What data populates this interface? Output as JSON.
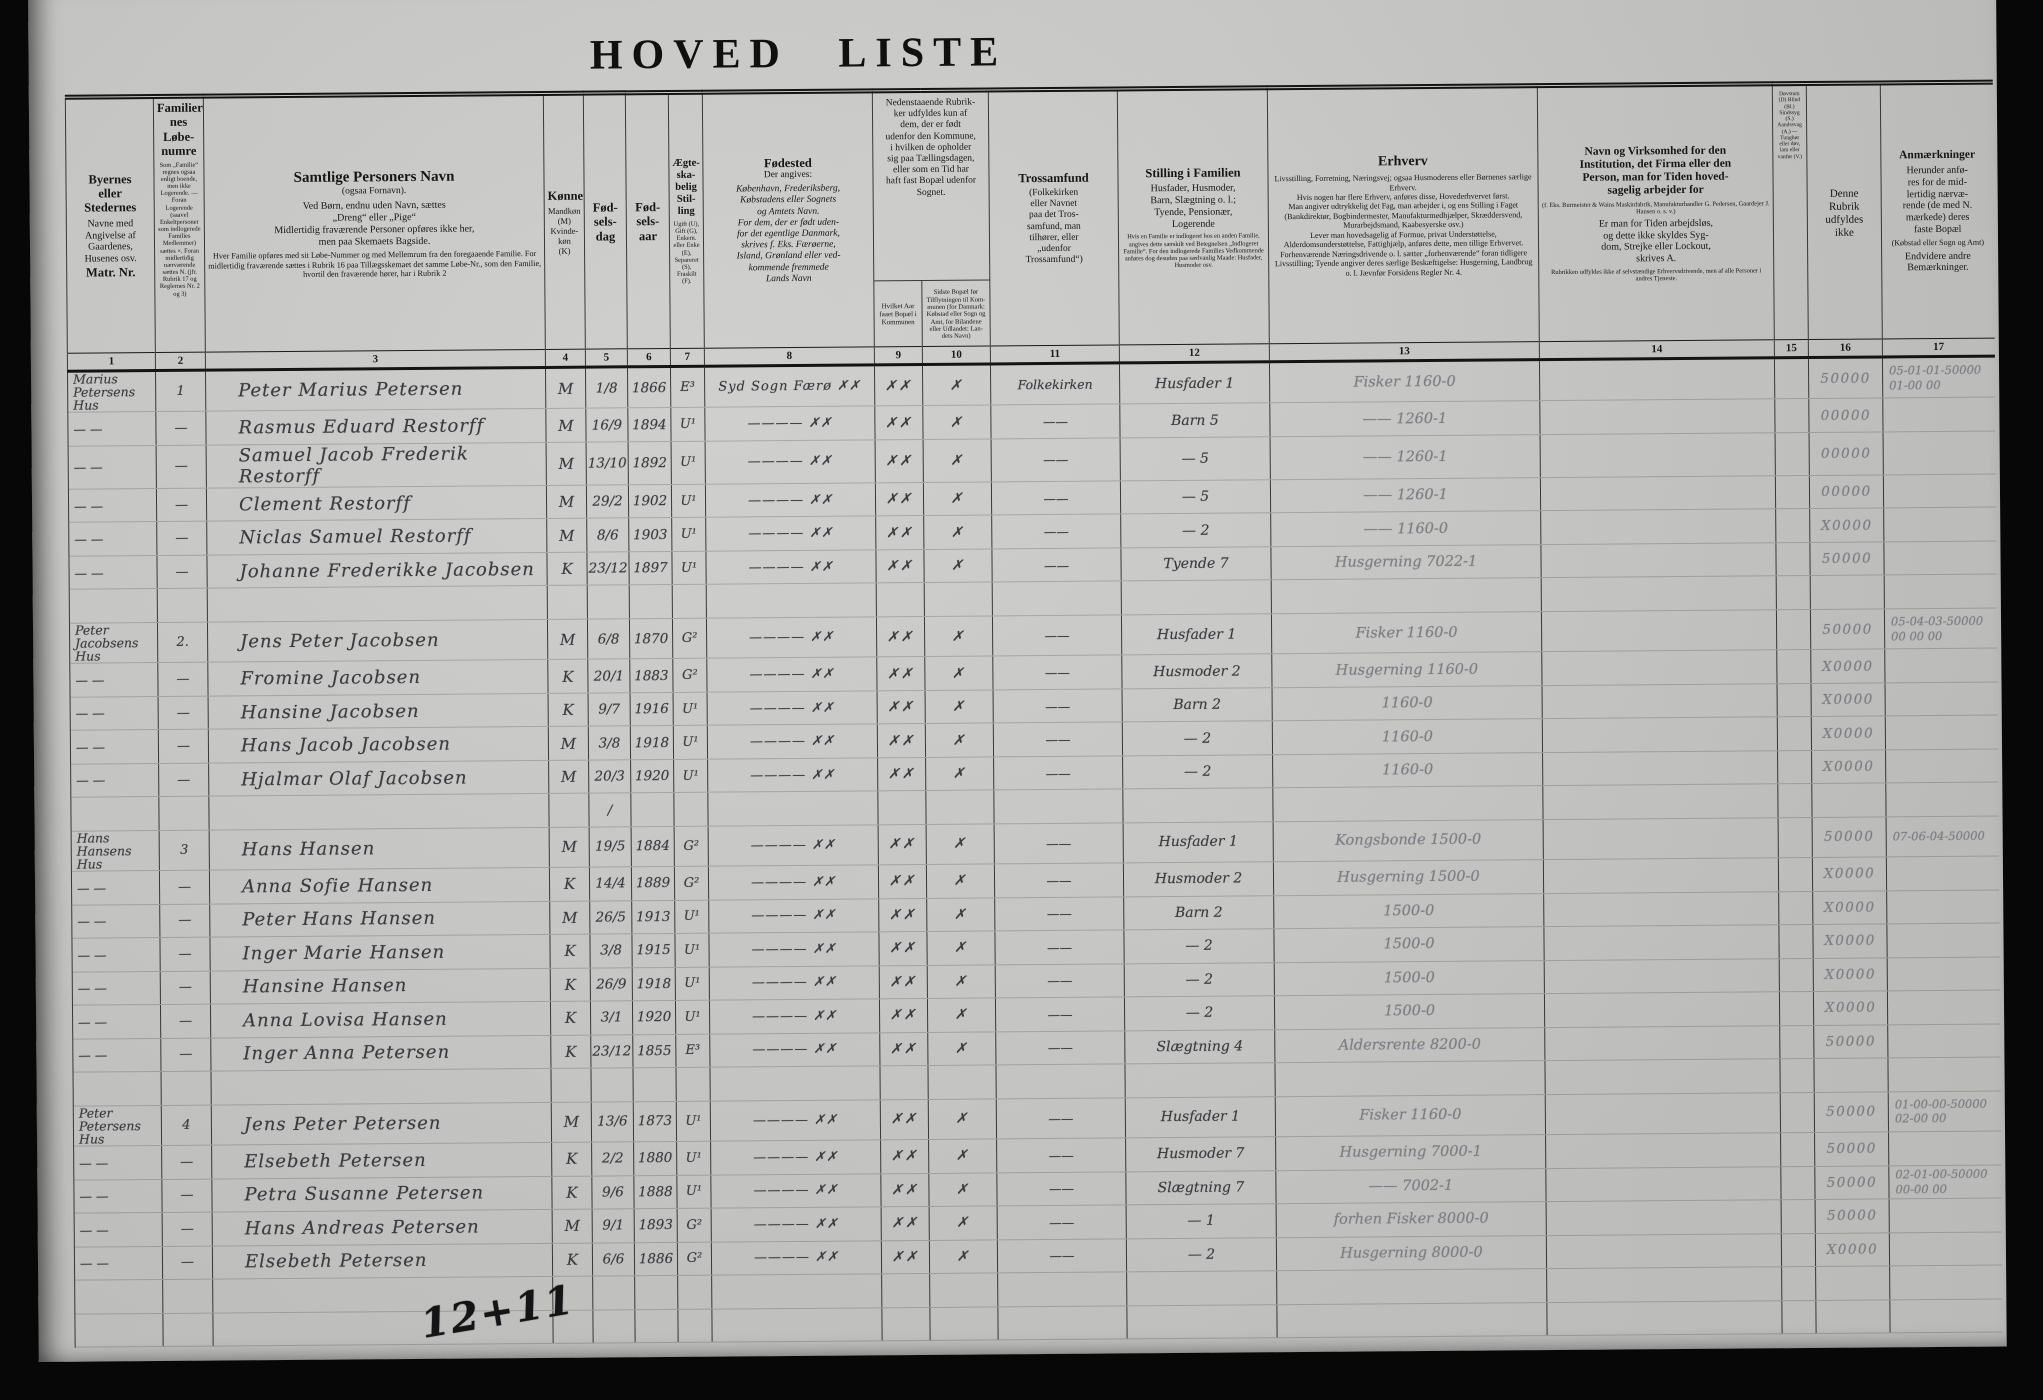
{
  "title": "HOVED LISTE",
  "bottom_note": "12+11",
  "header": {
    "c1": {
      "no": "1",
      "main": "Byernes\neller\nStedernes",
      "body": "Navne med\nAngivelse af\nGaardenes,\nHusenes osv.",
      "main2": "Matr. Nr."
    },
    "c2": {
      "no": "2",
      "main": "Familier-\nnes\nLøbe-\nnumre",
      "tiny": "Som „Familie“ regnes ogsaa enligt boende, men ikke Logerende. — Foran Logerende (saavel Enkeltpersoner som indlogerede Families Medlemmer) sættes ×. Foran midlertidig nærværende sættes N. (jfr. Rubrik 17 og Reglernes Nr. 2 og 3)"
    },
    "c3": {
      "no": "3",
      "main": "Samtlige Personers Navn",
      "sub": "(ogsaa Fornavn).",
      "body": "Ved Børn, endnu uden Navn, sættes\n„Dreng“ eller „Pige“\nMidlertidig fraværende Personer opføres ikke her,\nmen paa Skemaets Bagside.",
      "tiny": "Hver Familie opføres med sit Løbe-Nummer og med Mellemrum fra den foregaaende Familie. For midlertidig fraværende sættes i Rubrik 16 paa Tillægsskemaet det samme Løbe-Nr., som den Familie, hvortil den fraværende hører, har i Rubrik 2"
    },
    "c4": {
      "no": "4",
      "main": "Kønnet",
      "body": "Mandkøn\n(M)\nKvinde-\nkøn\n(K)"
    },
    "c5": {
      "no": "5",
      "main": "Fød-\nsels-\ndag"
    },
    "c6": {
      "no": "6",
      "main": "Fød-\nsels-\naar"
    },
    "c7": {
      "no": "7",
      "main": "Ægte-\nska-\nbelig\nStil-\nling",
      "tiny": "Ugift (U), Gift (G), Enkem. eller Enke (E), Separeret (S), Fraskilt (F)."
    },
    "c8": {
      "no": "8",
      "main": "Fødested",
      "sub": "Der angives:",
      "body": "København, Frederiksberg,\nKøbstadens eller Sognets\nog Amtets Navn.\nFor dem, der er født uden-\nfor det egentlige Danmark,\nskrives f. Eks. Færøerne,\nIsland, Grønland eller ved-\nkommende fremmede\nLands Navn"
    },
    "group910": {
      "text": "Nedenstaaende Rubrik-\nker udfyldes kun af\ndem, der er født\nudenfor den Kommune,\ni hvilken de opholder\nsig paa Tællingsdagen,\neller som en Tid har\nhaft fast Bopæl udenfor\nSognet."
    },
    "c9": {
      "no": "9",
      "body": "Hvilket\nAar\nfaaet\nBopæl i\nKommunen"
    },
    "c10": {
      "no": "10",
      "body": "Sidste Bopæl før\nTilflytningen til Kom-\nmunen (for Danmark:\nKøbstad eller Sogn\nog Amt, for Bilandene\neller Udlandet: Lan-\ndets Navn)"
    },
    "c11": {
      "no": "11",
      "main": "Trossamfund",
      "body": "(Folkekirken\neller Navnet\npaa det Tros-\nsamfund, man\ntilhører, eller\n„udenfor\nTrossamfund“)"
    },
    "c12": {
      "no": "12",
      "main": "Stilling i Familien",
      "body": "Husfader, Husmoder,\nBarn, Slægtning o. l.;\nTyende, Pensionær,\nLogerende",
      "tiny": "Hvis en Familie er indlogeret hos en anden Familie, angives dette særskilt ved Betegnelsen „Indlogeret Familie“. For den indlogerede Families Vedkommende anføres dog desuden paa sædvanlig Maade: Husfader, Husmoder osv."
    },
    "c13": {
      "no": "13",
      "main": "Erhverv",
      "body": "Livsstilling, Forretning, Næringsvej; ogsaa Husmoderens eller Børnenes særlige Erhverv.\nHvis nogen har flere Erhverv, anføres disse, Hovederhvervet først.\nMan angiver udtrykkelig det Fag, man arbejder i, og ens Stilling i Faget (Bankdirektør, Bogbindermester, Manufakturmedhjælper, Skræddersvend, Murarbejdsmand, Kaabesyerske osv.)\nLever man hovedsagelig af Formue, privat Understøttelse, Alderdomsunderstøttelse, Fattighjælp, anføres dette, men tillige Erhvervet.\nForhenværende Næringsdrivende o. l. sætter „forhenværende“ foran tidligere Livsstilling; Tyende angiver deres særlige Beskæftigelse: Husgerning, Landbrug o. l. Jævnfør Forsidens Regler Nr. 4."
    },
    "c14": {
      "no": "14",
      "main": "Navn og Virksomhed for den\nInstitution, det Firma eller den\nPerson, man for Tiden hoved-\nsagelig arbejder for",
      "tiny1": "(f. Eks. Burmeister & Wains Maskinfabrik, Manufakturhandler G. Pedersen, Gaardejer J. Hansen o. s. v.)",
      "body": "Er man for Tiden arbejdsløs,\nog dette ikke skyldes Syg-\ndom, Strejke eller Lockout,\nskrives A.",
      "tiny2": "Rubrikken udfyldes ikke af selvstændige Erhvervsdrivende, men af alle Personer i andres Tjeneste."
    },
    "c15": {
      "no": "15",
      "tiny": "Døvstum (D) Blind (Bl.) Sindssyg (S.) Aandssvag (A.) — Tunghør eller døv, lam eller vanfør (V.)"
    },
    "c16": {
      "no": "16",
      "body": "Denne\nRubrik\nudfyldes\nikke"
    },
    "c17": {
      "no": "17",
      "main": "Anmærkninger",
      "body": "Herunder anfø-\nres for de mid-\nlertidig nærvæ-\nrende (de med N.\nmærkede) deres\nfaste Bopæl",
      "sub": "(Købstad eller Sogn\nog Amt)",
      "body2": "Endvidere andre\nBemærkninger."
    }
  },
  "table": {
    "rows": [
      {
        "house": "Marius Petersens\nHus",
        "nr": "1",
        "name": "Peter Marius Petersen",
        "sex": "M",
        "day": "1/8",
        "year": "1866",
        "ms": "E³",
        "born": "Syd Sogn Færø  ✗✗",
        "c9": "✗✗",
        "c10": "✗",
        "faith": "Folkekirken",
        "pos": "Husfader 1",
        "occ": "Fisker 1160-0",
        "code": "50000",
        "note": "05-01-01-50000\n01-00 00"
      },
      {
        "house": "— —",
        "nr": "—",
        "name": "Rasmus Eduard Restorff",
        "sex": "M",
        "day": "16/9",
        "year": "1894",
        "ms": "U¹",
        "born": "————  ✗✗",
        "c9": "✗✗",
        "c10": "✗",
        "faith": "——",
        "pos": "Barn 5",
        "occ": "—— 1260-1",
        "code": "00000"
      },
      {
        "house": "— —",
        "nr": "—",
        "name": "Samuel Jacob Frederik Restorff",
        "sex": "M",
        "day": "13/10",
        "year": "1892",
        "ms": "U¹",
        "born": "————  ✗✗",
        "c9": "✗✗",
        "c10": "✗",
        "faith": "——",
        "pos": "— 5",
        "occ": "—— 1260-1",
        "code": "00000"
      },
      {
        "house": "— —",
        "nr": "—",
        "name": "Clement Restorff",
        "sex": "M",
        "day": "29/2",
        "year": "1902",
        "ms": "U¹",
        "born": "————  ✗✗",
        "c9": "✗✗",
        "c10": "✗",
        "faith": "——",
        "pos": "— 5",
        "occ": "—— 1260-1",
        "code": "00000"
      },
      {
        "house": "— —",
        "nr": "—",
        "name": "Niclas Samuel Restorff",
        "sex": "M",
        "day": "8/6",
        "year": "1903",
        "ms": "U¹",
        "born": "————  ✗✗",
        "c9": "✗✗",
        "c10": "✗",
        "faith": "——",
        "pos": "— 2",
        "occ": "—— 1160-0",
        "code": "X0000"
      },
      {
        "house": "— —",
        "nr": "—",
        "name": "Johanne Frederikke Jacobsen",
        "sex": "K",
        "day": "23/12",
        "year": "1897",
        "ms": "U¹",
        "born": "————  ✗✗",
        "c9": "✗✗",
        "c10": "✗",
        "faith": "——",
        "pos": "Tyende 7",
        "occ": "Husgerning 7022-1",
        "code": "50000"
      },
      {},
      {
        "house": "Peter Jacobsens\nHus",
        "nr": "2.",
        "name": "Jens Peter Jacobsen",
        "sex": "M",
        "day": "6/8",
        "year": "1870",
        "ms": "G²",
        "born": "————  ✗✗",
        "c9": "✗✗",
        "c10": "✗",
        "faith": "——",
        "pos": "Husfader 1",
        "occ": "Fisker 1160-0",
        "code": "50000",
        "note": "05-04-03-50000\n00 00 00"
      },
      {
        "house": "— —",
        "nr": "—",
        "name": "Fromine Jacobsen",
        "sex": "K",
        "day": "20/1",
        "year": "1883",
        "ms": "G²",
        "born": "————  ✗✗",
        "c9": "✗✗",
        "c10": "✗",
        "faith": "——",
        "pos": "Husmoder 2",
        "occ": "Husgerning 1160-0",
        "code": "X0000"
      },
      {
        "house": "— —",
        "nr": "—",
        "name": "Hansine Jacobsen",
        "sex": "K",
        "day": "9/7",
        "year": "1916",
        "ms": "U¹",
        "born": "————  ✗✗",
        "c9": "✗✗",
        "c10": "✗",
        "faith": "——",
        "pos": "Barn 2",
        "occ": "1160-0",
        "code": "X0000"
      },
      {
        "house": "— —",
        "nr": "—",
        "name": "Hans Jacob Jacobsen",
        "sex": "M",
        "day": "3/8",
        "year": "1918",
        "ms": "U¹",
        "born": "————  ✗✗",
        "c9": "✗✗",
        "c10": "✗",
        "faith": "——",
        "pos": "— 2",
        "occ": "1160-0",
        "code": "X0000"
      },
      {
        "house": "— —",
        "nr": "—",
        "name": "Hjalmar Olaf Jacobsen",
        "sex": "M",
        "day": "20/3",
        "year": "1920",
        "ms": "U¹",
        "born": "————  ✗✗",
        "c9": "✗✗",
        "c10": "✗",
        "faith": "——",
        "pos": "— 2",
        "occ": "1160-0",
        "code": "X0000"
      },
      {
        "day": "/"
      },
      {
        "house": "Hans Hansens\nHus",
        "nr": "3",
        "name": "Hans Hansen",
        "sex": "M",
        "day": "19/5",
        "year": "1884",
        "ms": "G²",
        "born": "————  ✗✗",
        "c9": "✗✗",
        "c10": "✗",
        "faith": "——",
        "pos": "Husfader 1",
        "occ": "Kongsbonde 1500-0",
        "code": "50000",
        "note": "07-06-04-50000"
      },
      {
        "house": "— —",
        "nr": "—",
        "name": "Anna Sofie Hansen",
        "sex": "K",
        "day": "14/4",
        "year": "1889",
        "ms": "G²",
        "born": "————  ✗✗",
        "c9": "✗✗",
        "c10": "✗",
        "faith": "——",
        "pos": "Husmoder 2",
        "occ": "Husgerning 1500-0",
        "code": "X0000"
      },
      {
        "house": "— —",
        "nr": "—",
        "name": "Peter Hans Hansen",
        "sex": "M",
        "day": "26/5",
        "year": "1913",
        "ms": "U¹",
        "born": "————  ✗✗",
        "c9": "✗✗",
        "c10": "✗",
        "faith": "——",
        "pos": "Barn 2",
        "occ": "1500-0",
        "code": "X0000"
      },
      {
        "house": "— —",
        "nr": "—",
        "name": "Inger Marie Hansen",
        "sex": "K",
        "day": "3/8",
        "year": "1915",
        "ms": "U¹",
        "born": "————  ✗✗",
        "c9": "✗✗",
        "c10": "✗",
        "faith": "——",
        "pos": "— 2",
        "occ": "1500-0",
        "code": "X0000"
      },
      {
        "house": "— —",
        "nr": "—",
        "name": "Hansine Hansen",
        "sex": "K",
        "day": "26/9",
        "year": "1918",
        "ms": "U¹",
        "born": "————  ✗✗",
        "c9": "✗✗",
        "c10": "✗",
        "faith": "——",
        "pos": "— 2",
        "occ": "1500-0",
        "code": "X0000"
      },
      {
        "house": "— —",
        "nr": "—",
        "name": "Anna Lovisa Hansen",
        "sex": "K",
        "day": "3/1",
        "year": "1920",
        "ms": "U¹",
        "born": "————  ✗✗",
        "c9": "✗✗",
        "c10": "✗",
        "faith": "——",
        "pos": "— 2",
        "occ": "1500-0",
        "code": "X0000"
      },
      {
        "house": "— —",
        "nr": "—",
        "name": "Inger Anna Petersen",
        "sex": "K",
        "day": "23/12",
        "year": "1855",
        "ms": "E³",
        "born": "————  ✗✗",
        "c9": "✗✗",
        "c10": "✗",
        "faith": "——",
        "pos": "Slægtning 4",
        "occ": "Aldersrente 8200-0",
        "code": "50000"
      },
      {},
      {
        "house": "Peter Petersens\nHus",
        "nr": "4",
        "name": "Jens Peter Petersen",
        "sex": "M",
        "day": "13/6",
        "year": "1873",
        "ms": "U¹",
        "born": "————  ✗✗",
        "c9": "✗✗",
        "c10": "✗",
        "faith": "——",
        "pos": "Husfader 1",
        "occ": "Fisker 1160-0",
        "code": "50000",
        "note": "01-00-00-50000\n02-00 00"
      },
      {
        "house": "— —",
        "nr": "—",
        "name": "Elsebeth Petersen",
        "sex": "K",
        "day": "2/2",
        "year": "1880",
        "ms": "U¹",
        "born": "————  ✗✗",
        "c9": "✗✗",
        "c10": "✗",
        "faith": "——",
        "pos": "Husmoder 7",
        "occ": "Husgerning 7000-1",
        "code": "50000"
      },
      {
        "house": "— —",
        "nr": "—",
        "name": "Petra Susanne Petersen",
        "sex": "K",
        "day": "9/6",
        "year": "1888",
        "ms": "U¹",
        "born": "————  ✗✗",
        "c9": "✗✗",
        "c10": "✗",
        "faith": "——",
        "pos": "Slægtning 7",
        "occ": "—— 7002-1",
        "code": "50000",
        "note": "02-01-00-50000\n00-00 00"
      },
      {
        "house": "— —",
        "nr": "—",
        "name": "Hans Andreas Petersen",
        "sex": "M",
        "day": "9/1",
        "year": "1893",
        "ms": "G²",
        "born": "————  ✗✗",
        "c9": "✗✗",
        "c10": "✗",
        "faith": "——",
        "pos": "— 1",
        "occ": "forhen Fisker 8000-0",
        "code": "50000"
      },
      {
        "house": "— —",
        "nr": "—",
        "name": "Elsebeth Petersen",
        "sex": "K",
        "day": "6/6",
        "year": "1886",
        "ms": "G²",
        "born": "————  ✗✗",
        "c9": "✗✗",
        "c10": "✗",
        "faith": "——",
        "pos": "— 2",
        "occ": "Husgerning 8000-0",
        "code": "X0000"
      },
      {},
      {}
    ]
  }
}
